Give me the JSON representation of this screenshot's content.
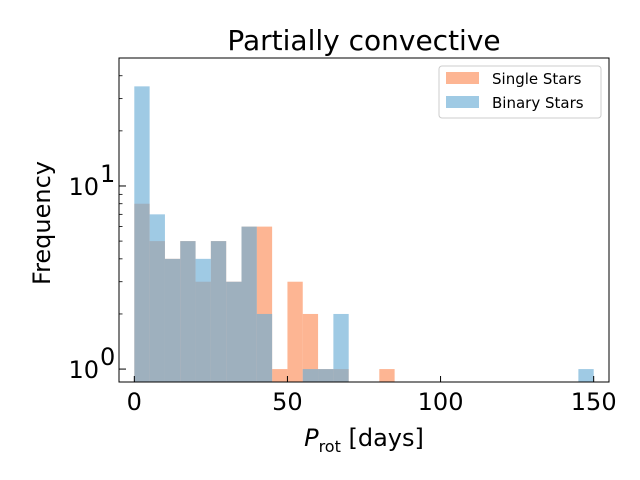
{
  "chart_data": {
    "type": "bar",
    "title": "Partially convective",
    "xlabel_main": "P",
    "xlabel_sub": "rot",
    "xlabel_unit": " [days]",
    "ylabel": "Frequency",
    "yscale": "log",
    "xlim": [
      -5,
      155
    ],
    "ylim": [
      0.85,
      50
    ],
    "x_ticks": [
      {
        "value": 0,
        "label": "0"
      },
      {
        "value": 50,
        "label": "50"
      },
      {
        "value": 100,
        "label": "100"
      },
      {
        "value": 150,
        "label": "150"
      }
    ],
    "y_ticks": [
      {
        "value": 1,
        "base": "10",
        "exp": "0"
      },
      {
        "value": 10,
        "base": "10",
        "exp": "1"
      }
    ],
    "legend_position": "top-right",
    "bin_edges": [
      0,
      5,
      10,
      15,
      20,
      25,
      30,
      35,
      40,
      45,
      50,
      55,
      60,
      65,
      70,
      75,
      80,
      85,
      90,
      95,
      100,
      105,
      110,
      115,
      120,
      125,
      130,
      135,
      140,
      145,
      150
    ],
    "series": [
      {
        "name": "Single Stars",
        "color": "#fc8d59",
        "values": [
          8,
          5,
          4,
          5,
          3,
          5,
          3,
          6,
          6,
          1,
          3,
          2,
          1,
          1,
          0,
          0,
          1,
          0,
          0,
          0,
          0,
          0,
          0,
          0,
          0,
          0,
          0,
          0,
          0,
          0
        ]
      },
      {
        "name": "Binary Stars",
        "color": "#6baed6",
        "values": [
          35,
          7,
          4,
          5,
          4,
          5,
          3,
          6,
          2,
          0,
          0,
          1,
          1,
          2,
          0,
          0,
          0,
          0,
          0,
          0,
          0,
          0,
          0,
          0,
          0,
          0,
          0,
          0,
          0,
          1
        ]
      }
    ]
  }
}
